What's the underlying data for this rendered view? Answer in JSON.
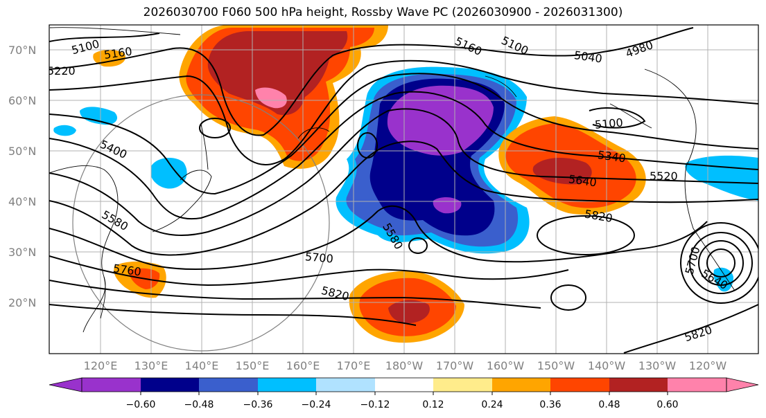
{
  "title": "2026030700 F060 500 hPa height, Rossby Wave PC (2026030900 - 2026031300)",
  "map": {
    "lat_labels": [
      "70°N",
      "60°N",
      "50°N",
      "40°N",
      "30°N",
      "20°N"
    ],
    "lon_labels": [
      "120°E",
      "130°E",
      "140°E",
      "150°E",
      "160°E",
      "170°E",
      "180°W",
      "170°W",
      "160°W",
      "150°W",
      "140°W",
      "130°W",
      "120°W"
    ],
    "contour_labels": [
      "5100",
      "5160",
      "5220",
      "5400",
      "5580",
      "5760",
      "5700",
      "5820",
      "5580",
      "5160",
      "5100",
      "5040",
      "4980",
      "5100",
      "5340",
      "5640",
      "5520",
      "5820",
      "5700",
      "5640",
      "5820"
    ]
  },
  "colorbar": {
    "ticks": [
      "−0.60",
      "−0.48",
      "−0.36",
      "−0.24",
      "−0.12",
      "0.12",
      "0.24",
      "0.36",
      "0.48",
      "0.60"
    ],
    "colors": [
      "#9932cc",
      "#00008b",
      "#3a5fcd",
      "#00bfff",
      "#b0e2ff",
      "#ffffff",
      "#ffec8b",
      "#ffa500",
      "#ff4500",
      "#b22222",
      "#ff82ab"
    ]
  }
}
